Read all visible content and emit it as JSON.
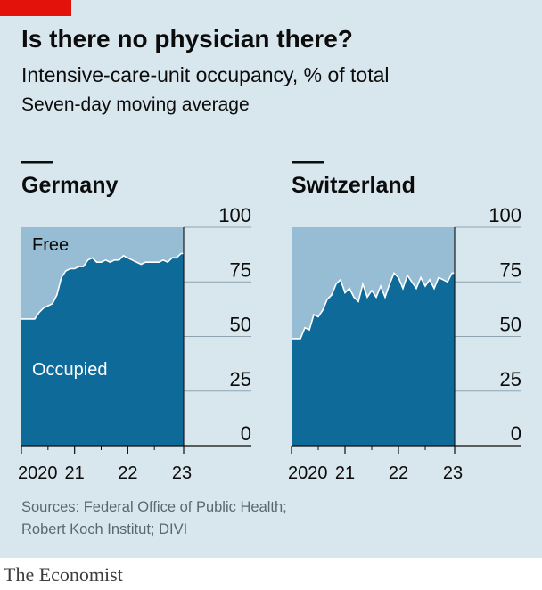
{
  "header": {
    "title": "Is there no physician there?",
    "subtitle": "Intensive-care-unit occupancy, % of total",
    "subtitle2": "Seven-day moving average"
  },
  "source": {
    "line1": "Sources: Federal Office of Public Health;",
    "line2": "Robert Koch Institut; DIVI"
  },
  "footer": {
    "brand": "The Economist"
  },
  "colors": {
    "occupied": "#0e6a99",
    "free": "#96bdd3",
    "background": "#d8e6ee",
    "brand_red": "#e3120b"
  },
  "chart_data": [
    {
      "type": "area",
      "title": "Germany",
      "ylim": [
        0,
        100
      ],
      "yticks": [
        0,
        25,
        50,
        75,
        100
      ],
      "xticks": [
        "2020",
        "21",
        "22",
        "23"
      ],
      "area_labels": {
        "occupied": "Occupied",
        "free": "Free"
      },
      "x": [
        "2020-04",
        "2020-05",
        "2020-06",
        "2020-07",
        "2020-08",
        "2020-09",
        "2020-10",
        "2020-11",
        "2020-12",
        "2021-01",
        "2021-02",
        "2021-03",
        "2021-04",
        "2021-05",
        "2021-06",
        "2021-07",
        "2021-08",
        "2021-09",
        "2021-10",
        "2021-11",
        "2021-12",
        "2022-01",
        "2022-02",
        "2022-03",
        "2022-04",
        "2022-05",
        "2022-06",
        "2022-07",
        "2022-08",
        "2022-09",
        "2022-10",
        "2022-11",
        "2022-12",
        "2023-01"
      ],
      "series": [
        {
          "name": "Occupied",
          "values": [
            58,
            61,
            63,
            64,
            65,
            69,
            77,
            80,
            81,
            81,
            82,
            82,
            85,
            86,
            84,
            84,
            85,
            84,
            85,
            85,
            87,
            86,
            85,
            84,
            83,
            84,
            84,
            84,
            84,
            85,
            84,
            86,
            86,
            88
          ]
        }
      ]
    },
    {
      "type": "area",
      "title": "Switzerland",
      "ylim": [
        0,
        100
      ],
      "yticks": [
        0,
        25,
        50,
        75,
        100
      ],
      "xticks": [
        "2020",
        "21",
        "22",
        "23"
      ],
      "x": [
        "2020-03",
        "2020-04",
        "2020-05",
        "2020-06",
        "2020-07",
        "2020-08",
        "2020-09",
        "2020-10",
        "2020-11",
        "2020-12",
        "2021-01",
        "2021-02",
        "2021-03",
        "2021-04",
        "2021-05",
        "2021-06",
        "2021-07",
        "2021-08",
        "2021-09",
        "2021-10",
        "2021-11",
        "2021-12",
        "2022-01",
        "2022-02",
        "2022-03",
        "2022-04",
        "2022-05",
        "2022-06",
        "2022-07",
        "2022-08",
        "2022-09",
        "2022-10",
        "2022-11",
        "2022-12",
        "2023-01"
      ],
      "series": [
        {
          "name": "Occupied",
          "values": [
            49,
            54,
            53,
            60,
            59,
            62,
            67,
            69,
            74,
            76,
            70,
            72,
            68,
            66,
            74,
            68,
            71,
            68,
            73,
            68,
            74,
            79,
            77,
            72,
            78,
            75,
            72,
            77,
            73,
            76,
            72,
            77,
            76,
            75,
            79
          ]
        }
      ]
    }
  ]
}
